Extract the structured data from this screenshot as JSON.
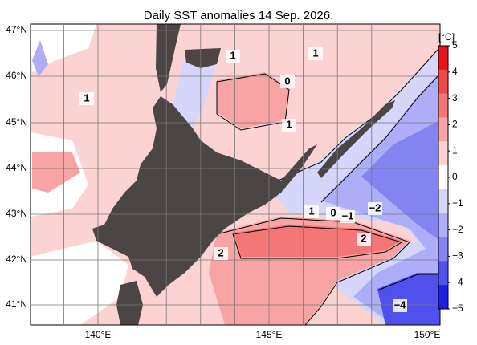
{
  "title": "Daily SST anomalies 14 Sep. 2026.",
  "map": {
    "lat_labels": [
      "47°N",
      "46°N",
      "45°N",
      "44°N",
      "43°N",
      "42°N",
      "41°N"
    ],
    "lon_labels": [
      "140°E",
      "145°E",
      "150°E"
    ],
    "contour_labels": [
      "1",
      "1",
      "0",
      "1",
      "1",
      "1",
      "0",
      "−1",
      "−2",
      "2",
      "2",
      "−4"
    ]
  },
  "colorbar": {
    "unit": "[°C]",
    "ticks": [
      5,
      4,
      3,
      2,
      1,
      0,
      {
        "value": -1,
        "label": "−1"
      },
      {
        "value": -2,
        "label": "−2"
      },
      {
        "value": -3,
        "label": "−3"
      },
      {
        "value": -4,
        "label": "−4"
      },
      {
        "value": -5,
        "label": "−5"
      }
    ],
    "colors": [
      "#e8141b",
      "#ef4a4a",
      "#f47676",
      "#f8a4a4",
      "#fbd3d3",
      "#ffffff",
      "#d6d6fb",
      "#aeaef8",
      "#8383f2",
      "#5050ec",
      "#1e1ee6"
    ]
  }
}
